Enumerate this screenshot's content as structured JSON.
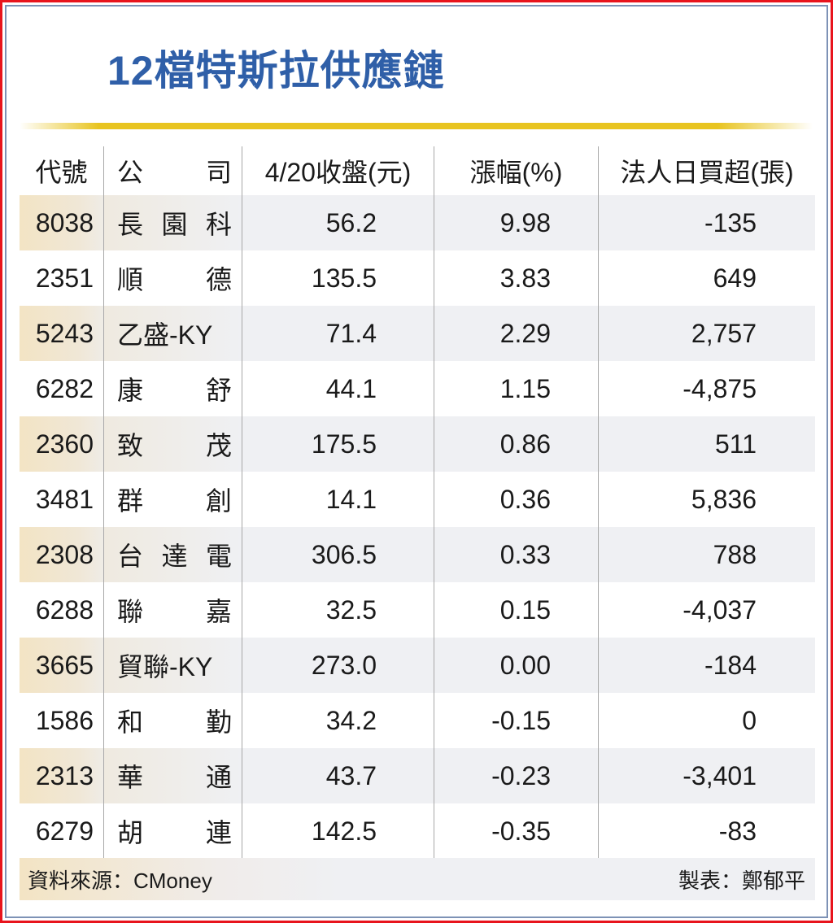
{
  "title": "12檔特斯拉供應鏈",
  "colors": {
    "title": "#2f5fa8",
    "rule": "#e8c420",
    "frame_outer": "#e8141c",
    "frame_inner": "#7d92b6",
    "row_shade": "#eff0f3",
    "code_shade": "#f3e4c4"
  },
  "table": {
    "headers": {
      "code": "代號",
      "company_a": "公",
      "company_b": "司",
      "close": "4/20收盤(元)",
      "change": "漲幅(%)",
      "net_buy": "法人日買超(張)"
    },
    "rows": [
      {
        "code": "8038",
        "name": [
          "長",
          "園",
          "科"
        ],
        "close": "56.2",
        "change": "9.98",
        "net_buy": "-135"
      },
      {
        "code": "2351",
        "name": [
          "順",
          "德"
        ],
        "close": "135.5",
        "change": "3.83",
        "net_buy": "649"
      },
      {
        "code": "5243",
        "name": [
          "乙盛-KY"
        ],
        "close": "71.4",
        "change": "2.29",
        "net_buy": "2,757"
      },
      {
        "code": "6282",
        "name": [
          "康",
          "舒"
        ],
        "close": "44.1",
        "change": "1.15",
        "net_buy": "-4,875"
      },
      {
        "code": "2360",
        "name": [
          "致",
          "茂"
        ],
        "close": "175.5",
        "change": "0.86",
        "net_buy": "511"
      },
      {
        "code": "3481",
        "name": [
          "群",
          "創"
        ],
        "close": "14.1",
        "change": "0.36",
        "net_buy": "5,836"
      },
      {
        "code": "2308",
        "name": [
          "台",
          "達",
          "電"
        ],
        "close": "306.5",
        "change": "0.33",
        "net_buy": "788"
      },
      {
        "code": "6288",
        "name": [
          "聯",
          "嘉"
        ],
        "close": "32.5",
        "change": "0.15",
        "net_buy": "-4,037"
      },
      {
        "code": "3665",
        "name": [
          "貿聯-KY"
        ],
        "close": "273.0",
        "change": "0.00",
        "net_buy": "-184"
      },
      {
        "code": "1586",
        "name": [
          "和",
          "勤"
        ],
        "close": "34.2",
        "change": "-0.15",
        "net_buy": "0"
      },
      {
        "code": "2313",
        "name": [
          "華",
          "通"
        ],
        "close": "43.7",
        "change": "-0.23",
        "net_buy": "-3,401"
      },
      {
        "code": "6279",
        "name": [
          "胡",
          "連"
        ],
        "close": "142.5",
        "change": "-0.35",
        "net_buy": "-83"
      }
    ]
  },
  "footer": {
    "source": "資料來源：CMoney",
    "author": "製表：鄭郁平"
  }
}
